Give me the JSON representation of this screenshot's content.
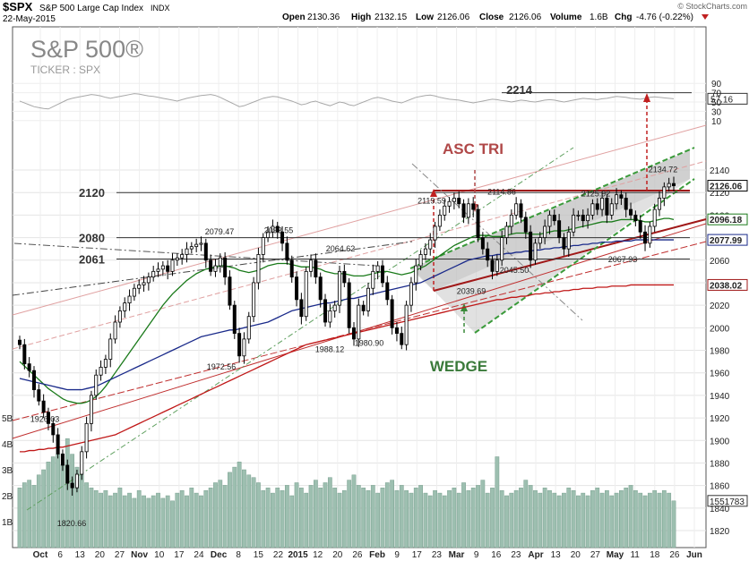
{
  "header": {
    "ticker": "$SPX",
    "name": "S&P 500 Large Cap Index",
    "exchange": "INDX",
    "date": "22-May-2015",
    "open_label": "Open",
    "open": "2130.36",
    "high_label": "High",
    "high": "2132.15",
    "low_label": "Low",
    "low": "2126.06",
    "close_label": "Close",
    "close": "2126.06",
    "volume_label": "Volume",
    "volume": "1.6B",
    "chg_label": "Chg",
    "chg": "-4.76 (-0.22%)",
    "watermark": "© StockCharts.com"
  },
  "chart_data": {
    "type": "candlestick",
    "title": "S&P 500®",
    "subtitle": "TICKER : SPX",
    "y_ticks": [
      1820,
      1840,
      1860,
      1880,
      1900,
      1920,
      1940,
      1960,
      1980,
      2000,
      2020,
      2040,
      2060,
      2080,
      2100,
      2120,
      2140
    ],
    "ylim": [
      1810,
      2160
    ],
    "x_labels": [
      "Oct",
      "6",
      "13",
      "20",
      "27",
      "Nov",
      "10",
      "17",
      "24",
      "Dec",
      "8",
      "15",
      "22",
      "2015",
      "12",
      "20",
      "26",
      "Feb",
      "9",
      "17",
      "23",
      "Mar",
      "9",
      "16",
      "23",
      "Apr",
      "13",
      "20",
      "27",
      "May",
      "11",
      "18",
      "26",
      "Jun"
    ],
    "volume_ticks": [
      "1B",
      "2B",
      "3B",
      "4B",
      "5B"
    ],
    "rsi_ticks": [
      10,
      30,
      50,
      70,
      90
    ],
    "rsi_value": "57.16",
    "rsi_annotation": "2214",
    "price_tags": [
      {
        "value": 2126.06,
        "text": "2126.06",
        "color": "#000000"
      },
      {
        "value": 2096.18,
        "text": "2096.18",
        "color": "#1a7a1a"
      },
      {
        "value": 2077.99,
        "text": "2077.99",
        "color": "#1a2a8a"
      },
      {
        "value": 2038.02,
        "text": "2038.02",
        "color": "#a01818"
      }
    ],
    "volume_tag": "1551783",
    "levels": [
      {
        "value": 2120,
        "text": "2120"
      },
      {
        "value": 2080,
        "text": "2080"
      },
      {
        "value": 2061,
        "text": "2061"
      }
    ],
    "point_labels": [
      {
        "text": "1926.03",
        "value": 1926.03
      },
      {
        "text": "1820.66",
        "value": 1820.66
      },
      {
        "text": "1972.56",
        "value": 1972.56
      },
      {
        "text": "2079.47",
        "value": 2079.47
      },
      {
        "text": "2093.55",
        "value": 2093.55
      },
      {
        "text": "2064.62",
        "value": 2064.62
      },
      {
        "text": "1988.12",
        "value": 1988.12
      },
      {
        "text": "1980.90",
        "value": 1980.9
      },
      {
        "text": "2119.59",
        "value": 2119.59
      },
      {
        "text": "2114.86",
        "value": 2114.86
      },
      {
        "text": "2039.69",
        "value": 2039.69
      },
      {
        "text": "2045.50",
        "value": 2045.5
      },
      {
        "text": "2125.92",
        "value": 2125.92
      },
      {
        "text": "2134.72",
        "value": 2134.72
      },
      {
        "text": "2067.93",
        "value": 2067.93
      }
    ],
    "annotations": [
      {
        "text": "ASC TRI",
        "color": "#b04848"
      },
      {
        "text": "WEDGE",
        "color": "#3a7a3a"
      }
    ],
    "series": [
      {
        "name": "50-day MA",
        "color": "#1a7a1a"
      },
      {
        "name": "100-day MA",
        "color": "#1a2a8a"
      },
      {
        "name": "200-day MA",
        "color": "#c01818"
      }
    ],
    "closes": [
      1985,
      1968,
      1962,
      1945,
      1935,
      1925,
      1915,
      1905,
      1888,
      1878,
      1862,
      1858,
      1870,
      1890,
      1915,
      1940,
      1958,
      1965,
      1972,
      1990,
      2005,
      2015,
      2022,
      2028,
      2035,
      2038,
      2040,
      2045,
      2050,
      2052,
      2055,
      2050,
      2060,
      2062,
      2065,
      2070,
      2072,
      2074,
      2075,
      2060,
      2050,
      2055,
      2062,
      2045,
      2020,
      1995,
      1975,
      1990,
      2010,
      2040,
      2065,
      2080,
      2085,
      2090,
      2085,
      2075,
      2060,
      2045,
      2025,
      2010,
      2050,
      2060,
      2045,
      2025,
      2005,
      2015,
      2020,
      2050,
      2040,
      2000,
      1990,
      2020,
      2015,
      2035,
      2050,
      2055,
      2040,
      2025,
      2000,
      1995,
      1985,
      2020,
      2040,
      2055,
      2065,
      2070,
      2078,
      2090,
      2100,
      2108,
      2112,
      2115,
      2110,
      2098,
      2110,
      2105,
      2080,
      2070,
      2060,
      2050,
      2060,
      2080,
      2090,
      2100,
      2110,
      2098,
      2085,
      2060,
      2075,
      2080,
      2090,
      2100,
      2095,
      2080,
      2070,
      2085,
      2100,
      2100,
      2095,
      2100,
      2110,
      2105,
      2115,
      2100,
      2110,
      2118,
      2115,
      2105,
      2100,
      2095,
      2085,
      2075,
      2090,
      2105,
      2115,
      2125,
      2128,
      2126
    ],
    "ma50": [
      1970,
      1966,
      1962,
      1958,
      1954,
      1950,
      1946,
      1943,
      1940,
      1937,
      1935,
      1934,
      1933,
      1933,
      1934,
      1936,
      1939,
      1943,
      1948,
      1954,
      1960,
      1966,
      1972,
      1978,
      1984,
      1990,
      1996,
      2002,
      2008,
      2014,
      2020,
      2025,
      2030,
      2034,
      2038,
      2042,
      2045,
      2048,
      2050,
      2052,
      2053,
      2054,
      2055,
      2055,
      2054,
      2053,
      2051,
      2050,
      2049,
      2050,
      2051,
      2053,
      2055,
      2056,
      2057,
      2057,
      2057,
      2056,
      2055,
      2054,
      2054,
      2054,
      2053,
      2052,
      2050,
      2049,
      2048,
      2048,
      2048,
      2047,
      2046,
      2046,
      2046,
      2047,
      2048,
      2049,
      2050,
      2050,
      2049,
      2048,
      2047,
      2048,
      2049,
      2051,
      2053,
      2055,
      2058,
      2061,
      2064,
      2067,
      2070,
      2073,
      2075,
      2077,
      2079,
      2081,
      2082,
      2082,
      2082,
      2081,
      2081,
      2081,
      2082,
      2083,
      2084,
      2084,
      2084,
      2083,
      2083,
      2083,
      2084,
      2085,
      2086,
      2086,
      2086,
      2087,
      2088,
      2089,
      2090,
      2091,
      2092,
      2093,
      2094,
      2094,
      2094,
      2095,
      2096,
      2096,
      2096,
      2096,
      2095,
      2094,
      2094,
      2095,
      2096,
      2097,
      2097,
      2096
    ],
    "ma100": [
      1955,
      1954,
      1953,
      1952,
      1951,
      1950,
      1949,
      1948,
      1947,
      1946,
      1945,
      1945,
      1945,
      1945,
      1946,
      1947,
      1948,
      1950,
      1952,
      1954,
      1956,
      1958,
      1960,
      1962,
      1964,
      1966,
      1968,
      1970,
      1972,
      1974,
      1976,
      1978,
      1980,
      1982,
      1984,
      1986,
      1988,
      1990,
      1992,
      1993,
      1994,
      1995,
      1996,
      1997,
      1998,
      1998,
      1999,
      2000,
      2001,
      2002,
      2003,
      2004,
      2005,
      2007,
      2009,
      2011,
      2013,
      2015,
      2016,
      2017,
      2018,
      2019,
      2020,
      2021,
      2022,
      2022,
      2023,
      2024,
      2025,
      2026,
      2026,
      2027,
      2028,
      2029,
      2030,
      2031,
      2032,
      2033,
      2034,
      2035,
      2036,
      2037,
      2038,
      2039,
      2040,
      2042,
      2044,
      2046,
      2048,
      2050,
      2052,
      2054,
      2056,
      2058,
      2060,
      2061,
      2062,
      2063,
      2064,
      2064,
      2065,
      2065,
      2066,
      2066,
      2067,
      2067,
      2068,
      2068,
      2069,
      2069,
      2070,
      2070,
      2071,
      2071,
      2072,
      2072,
      2073,
      2073,
      2074,
      2074,
      2075,
      2075,
      2076,
      2076,
      2076,
      2077,
      2077,
      2077,
      2077,
      2078,
      2078,
      2078,
      2078,
      2078,
      2078,
      2078,
      2078,
      2078
    ],
    "ma200": [
      1890,
      1890,
      1891,
      1891,
      1892,
      1892,
      1893,
      1893,
      1894,
      1894,
      1895,
      1896,
      1897,
      1898,
      1899,
      1900,
      1901,
      1902,
      1903,
      1904,
      1905,
      1907,
      1909,
      1911,
      1913,
      1915,
      1917,
      1919,
      1921,
      1923,
      1925,
      1927,
      1929,
      1931,
      1933,
      1935,
      1937,
      1939,
      1941,
      1943,
      1945,
      1947,
      1949,
      1951,
      1953,
      1955,
      1957,
      1959,
      1961,
      1963,
      1965,
      1967,
      1969,
      1971,
      1973,
      1975,
      1977,
      1979,
      1981,
      1983,
      1985,
      1986,
      1987,
      1988,
      1989,
      1990,
      1991,
      1992,
      1993,
      1994,
      1995,
      1996,
      1997,
      1998,
      1999,
      2000,
      2001,
      2002,
      2003,
      2004,
      2005,
      2006,
      2007,
      2008,
      2009,
      2010,
      2011,
      2012,
      2013,
      2014,
      2015,
      2016,
      2017,
      2018,
      2019,
      2020,
      2021,
      2022,
      2023,
      2024,
      2025,
      2025,
      2026,
      2027,
      2027,
      2028,
      2028,
      2029,
      2030,
      2030,
      2031,
      2031,
      2032,
      2032,
      2033,
      2033,
      2034,
      2034,
      2035,
      2035,
      2035,
      2036,
      2036,
      2036,
      2037,
      2037,
      2037,
      2037,
      2038,
      2038,
      2038,
      2038,
      2038,
      2038,
      2038,
      2038,
      2038,
      2038
    ],
    "volumes": [
      2.3,
      2.5,
      2.6,
      2.4,
      2.8,
      3.0,
      3.3,
      3.5,
      3.6,
      3.2,
      4.2,
      3.6,
      3.1,
      2.8,
      2.5,
      2.3,
      2.2,
      2.1,
      2.2,
      2.0,
      2.1,
      2.3,
      2.0,
      2.1,
      1.9,
      2.2,
      2.0,
      1.9,
      2.0,
      2.1,
      1.9,
      2.0,
      1.8,
      2.1,
      2.2,
      2.0,
      2.3,
      2.1,
      2.0,
      2.2,
      2.3,
      2.5,
      2.6,
      2.4,
      2.9,
      3.1,
      3.3,
      3.0,
      2.8,
      2.7,
      2.5,
      2.2,
      2.3,
      2.1,
      2.3,
      2.2,
      2.4,
      2.0,
      2.5,
      2.3,
      2.1,
      2.4,
      2.6,
      2.3,
      2.5,
      2.7,
      2.3,
      2.1,
      2.2,
      2.6,
      2.8,
      2.4,
      2.3,
      2.2,
      2.4,
      2.1,
      2.3,
      2.5,
      2.6,
      2.2,
      2.4,
      2.2,
      2.1,
      2.3,
      2.4,
      2.1,
      2.0,
      2.2,
      2.1,
      2.0,
      2.2,
      2.3,
      2.1,
      2.5,
      2.2,
      2.3,
      2.4,
      2.6,
      2.1,
      2.3,
      3.5,
      2.2,
      2.0,
      2.1,
      2.2,
      2.3,
      2.6,
      2.4,
      2.2,
      2.1,
      2.3,
      2.2,
      2.1,
      2.0,
      2.1,
      2.3,
      2.2,
      2.0,
      2.1,
      2.0,
      2.2,
      2.3,
      2.1,
      2.2,
      2.0,
      2.1,
      2.2,
      2.3,
      2.4,
      2.2,
      2.1,
      2.0,
      2.1,
      2.2,
      2.1,
      2.2,
      2.1,
      1.8
    ],
    "rsi": [
      52,
      48,
      44,
      40,
      38,
      36,
      35,
      40,
      45,
      50,
      55,
      58,
      60,
      62,
      64,
      66,
      65,
      63,
      60,
      58,
      60,
      62,
      64,
      66,
      68,
      67,
      65,
      63,
      62,
      60,
      58,
      56,
      54,
      52,
      55,
      58,
      60,
      62,
      64,
      65,
      66,
      64,
      60,
      55,
      50,
      45,
      40,
      42,
      46,
      50,
      54,
      58,
      60,
      62,
      61,
      58,
      55,
      52,
      48,
      44,
      46,
      50,
      52,
      48,
      45,
      42,
      46,
      50,
      48,
      44,
      42,
      46,
      50,
      54,
      58,
      60,
      58,
      55,
      52,
      50,
      48,
      52,
      56,
      60,
      62,
      64,
      65,
      63,
      60,
      58,
      56,
      55,
      54,
      52,
      50,
      48,
      50,
      52,
      54,
      56,
      55,
      53,
      52,
      50,
      52,
      54,
      53,
      51,
      50,
      52,
      54,
      55,
      54,
      52,
      50,
      52,
      54,
      56,
      58,
      57,
      56,
      55,
      57,
      58,
      60,
      62,
      61,
      60,
      58,
      57,
      56,
      58,
      60,
      61,
      60,
      59,
      58,
      57
    ]
  }
}
